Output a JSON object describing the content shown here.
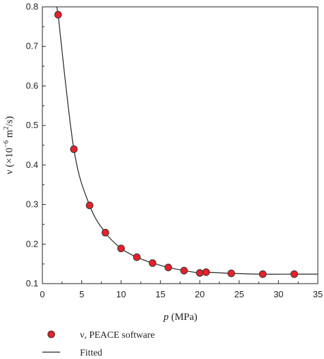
{
  "chart_data": {
    "type": "scatter",
    "xlabel": {
      "var": "p",
      "unit": " (MPa)"
    },
    "ylabel": {
      "prefix": "ν (×10",
      "exp": "−6",
      "mid": " m",
      "exp2": "2",
      "suffix": "/s)"
    },
    "xlim": [
      0,
      35
    ],
    "ylim": [
      0.1,
      0.8
    ],
    "xticks": [
      "0",
      "5",
      "10",
      "15",
      "20",
      "25",
      "30",
      "35"
    ],
    "yticks": [
      "0.1",
      "0.2",
      "0.3",
      "0.4",
      "0.5",
      "0.6",
      "0.7",
      "0.8"
    ],
    "grid": false,
    "legend_position": "bottom-left",
    "series": [
      {
        "name": "ν, PEACE software",
        "kind": "scatter",
        "color": "#e8202a",
        "x": [
          2,
          4,
          6,
          8,
          10,
          12,
          14,
          16,
          18,
          20,
          20.8,
          24,
          28,
          32
        ],
        "y": [
          0.78,
          0.44,
          0.298,
          0.229,
          0.189,
          0.167,
          0.152,
          0.141,
          0.133,
          0.127,
          0.129,
          0.126,
          0.124,
          0.124
        ]
      },
      {
        "name": "Fitted",
        "kind": "line",
        "color": "#222222"
      }
    ]
  }
}
